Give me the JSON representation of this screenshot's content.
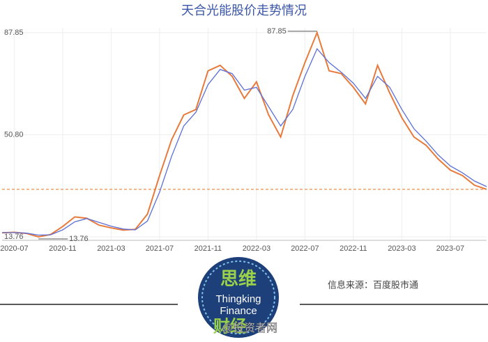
{
  "chart_data": {
    "type": "line",
    "title": "天合光能股价走势情况",
    "x": [
      "2020-06",
      "2020-07",
      "2020-08",
      "2020-09",
      "2020-10",
      "2020-11",
      "2020-12",
      "2021-01",
      "2021-02",
      "2021-03",
      "2021-04",
      "2021-05",
      "2021-06",
      "2021-07",
      "2021-08",
      "2021-09",
      "2021-10",
      "2021-11",
      "2021-12",
      "2022-01",
      "2022-02",
      "2022-03",
      "2022-04",
      "2022-05",
      "2022-06",
      "2022-07",
      "2022-08",
      "2022-09",
      "2022-10",
      "2022-11",
      "2022-12",
      "2023-01",
      "2023-02",
      "2023-03",
      "2023-04",
      "2023-05",
      "2023-06",
      "2023-07",
      "2023-08",
      "2023-09",
      "2023-10"
    ],
    "series": [
      {
        "color": "#e8793a",
        "values": [
          15.2,
          15.4,
          15.0,
          13.76,
          14.6,
          17.5,
          21.0,
          20.5,
          18.0,
          17.0,
          16.2,
          16.5,
          22.0,
          36.0,
          49.0,
          58.0,
          60.0,
          74.0,
          76.0,
          72.0,
          64.0,
          70.0,
          58.0,
          50.0,
          65.0,
          77.0,
          87.85,
          74.0,
          73.0,
          68.0,
          62.0,
          76.0,
          66.0,
          57.0,
          50.0,
          47.0,
          42.0,
          38.0,
          36.0,
          32.5,
          31.0
        ]
      },
      {
        "color": "#5b6fd6",
        "values": [
          15.3,
          15.3,
          15.1,
          14.4,
          14.5,
          16.3,
          19.2,
          20.4,
          19.0,
          17.6,
          16.6,
          16.3,
          19.5,
          30.0,
          43.0,
          54.0,
          59.0,
          69.0,
          74.5,
          73.0,
          67.0,
          68.0,
          61.0,
          54.0,
          60.0,
          72.0,
          82.0,
          77.0,
          73.5,
          69.5,
          64.0,
          72.0,
          68.0,
          60.0,
          53.0,
          48.5,
          43.5,
          39.5,
          37.0,
          34.0,
          32.0
        ]
      }
    ],
    "xlim": [
      "2020-06",
      "2023-10"
    ],
    "xticks": [
      "2020-07",
      "2020-11",
      "2021-03",
      "2021-07",
      "2021-11",
      "2022-03",
      "2022-07",
      "2022-11",
      "2023-03",
      "2023-07"
    ],
    "ylim": [
      12.5,
      89.6
    ],
    "yticks": [
      13.76,
      {
        "value": 50.8,
        "label": "50.80"
      },
      87.85
    ],
    "grid": true,
    "reference_line": {
      "value": 31.0,
      "color": "#f08030"
    }
  },
  "footer": {
    "logo_top": "思维",
    "logo_line1": "Thingking",
    "logo_line2": "Finance",
    "logo_bottom": "财经",
    "source": "信息来源：百度股市通",
    "watermark": "@投资者网"
  }
}
